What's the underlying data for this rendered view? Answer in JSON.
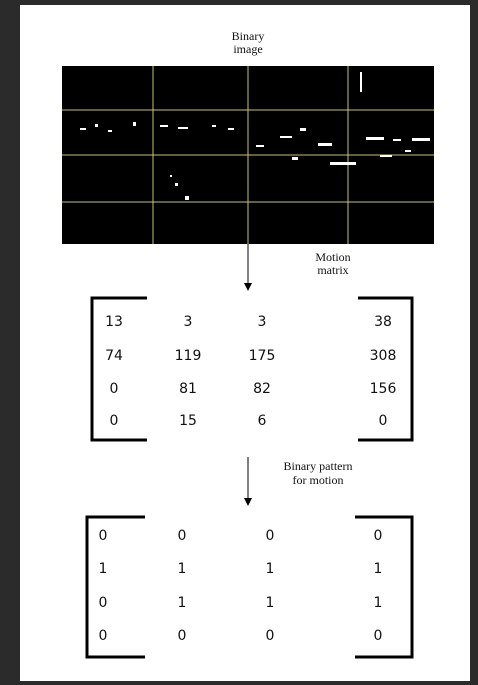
{
  "top_label": [
    "Binary",
    "image"
  ],
  "motion_label": [
    "Motion",
    "matrix"
  ],
  "motion_matrix": [
    [
      13,
      3,
      3,
      38
    ],
    [
      74,
      119,
      175,
      308
    ],
    [
      0,
      81,
      82,
      156
    ],
    [
      0,
      15,
      6,
      0
    ]
  ],
  "pattern_label": [
    "Binary pattern",
    "for motion"
  ],
  "binary_pattern": [
    [
      0,
      0,
      0,
      0
    ],
    [
      1,
      1,
      1,
      1
    ],
    [
      0,
      1,
      1,
      1
    ],
    [
      0,
      0,
      0,
      0
    ]
  ]
}
